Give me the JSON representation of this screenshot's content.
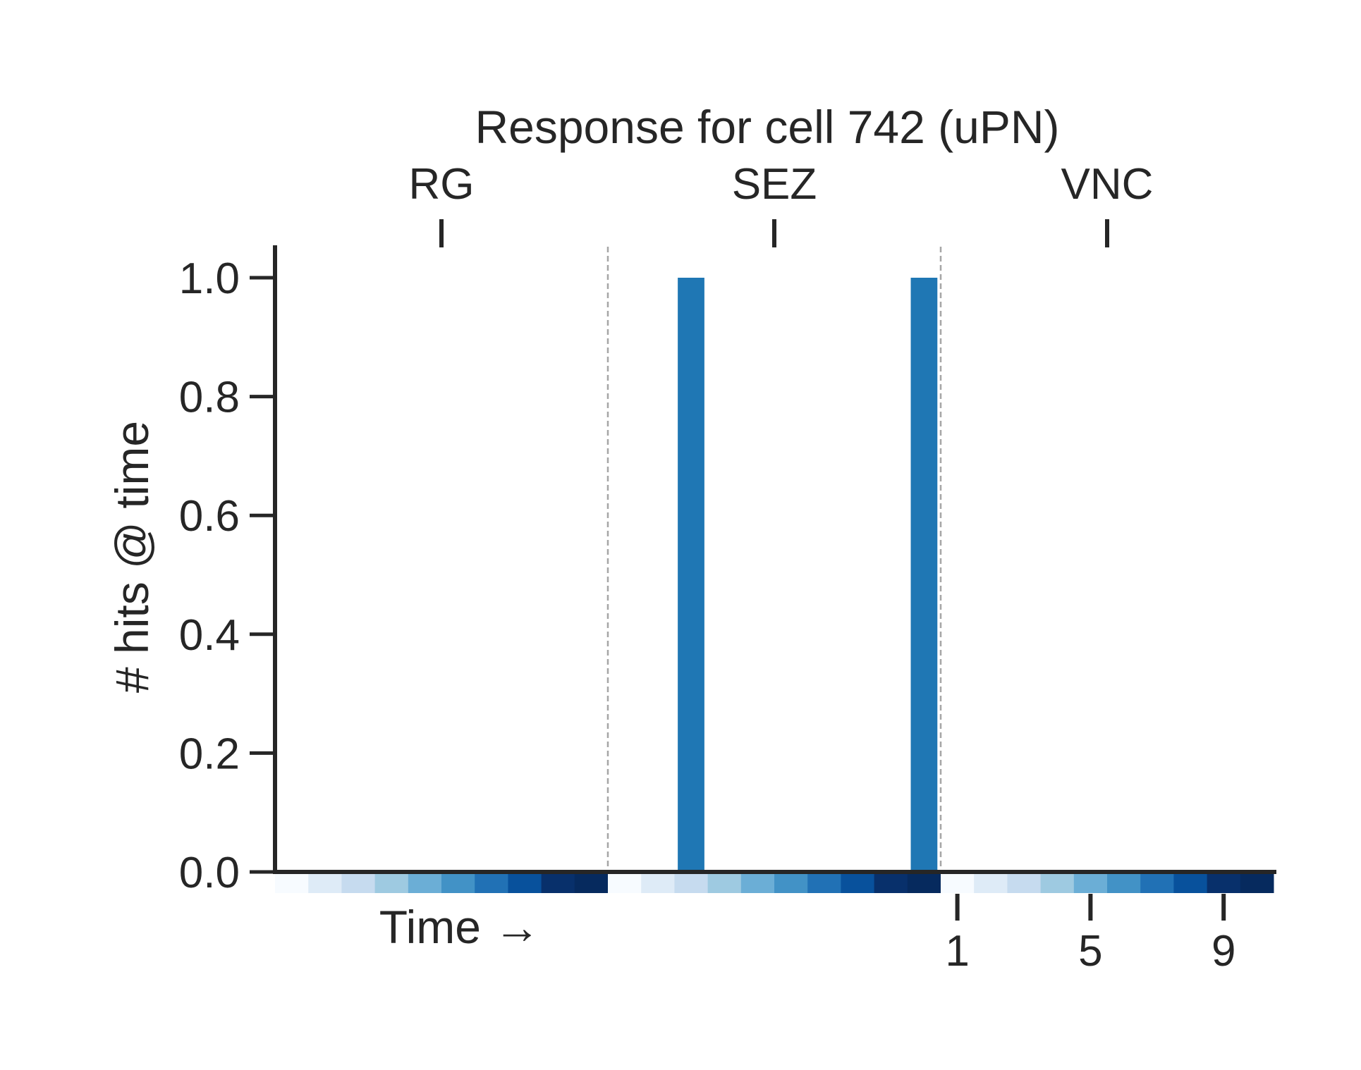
{
  "chart_data": {
    "type": "bar",
    "title": "Response for cell 742 (uPN)",
    "ylabel": "# hits @ time",
    "xlabel": "Time →",
    "ylim": [
      0,
      1.05
    ],
    "yticks": [
      "0.0",
      "0.2",
      "0.4",
      "0.6",
      "0.8",
      "1.0"
    ],
    "groups": [
      "RG",
      "SEZ",
      "VNC"
    ],
    "steps_per_group": 10,
    "bottom_ticks": [
      "1",
      "5",
      "9"
    ],
    "bar_color": "#1f77b4",
    "values": [
      0,
      0,
      0,
      0,
      0,
      0,
      0,
      0,
      0,
      0,
      0,
      0,
      1,
      0,
      0,
      0,
      0,
      0,
      0,
      1,
      0,
      0,
      0,
      0,
      0,
      0,
      0,
      0,
      0,
      0
    ],
    "time_colors": [
      "#f7fbff",
      "#deebf7",
      "#c6dbef",
      "#9ecae1",
      "#6baed6",
      "#4292c6",
      "#2171b5",
      "#08519c",
      "#08306b",
      "#062a5e"
    ],
    "grid": false
  }
}
